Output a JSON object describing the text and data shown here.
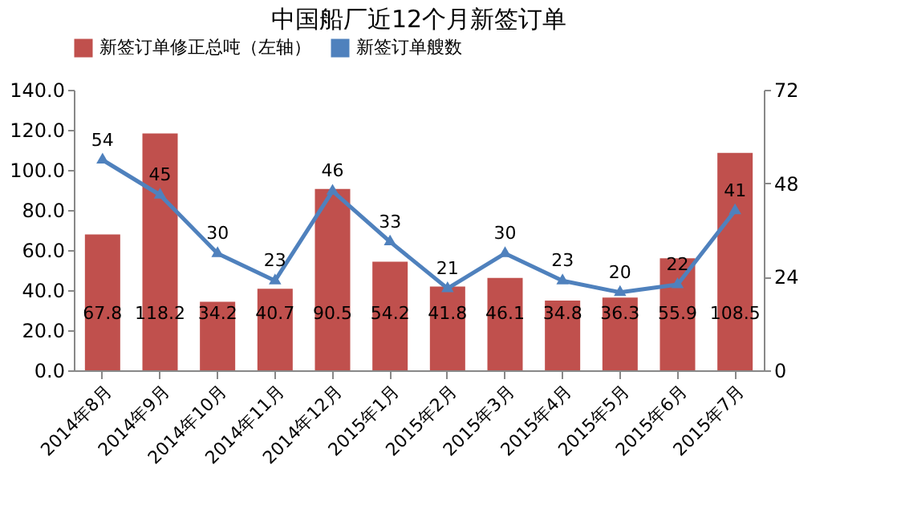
{
  "chart_data": {
    "type": "bar",
    "title": "中国船厂近12个月新签订单",
    "categories": [
      "2014年8月",
      "2014年9月",
      "2014年10月",
      "2014年11月",
      "2014年12月",
      "2015年1月",
      "2015年2月",
      "2015年3月",
      "2015年4月",
      "2015年5月",
      "2015年6月",
      "2015年7月"
    ],
    "series": [
      {
        "name": "新签订单修正总吨（左轴）",
        "color": "#c0504d",
        "values": [
          67.8,
          118.2,
          34.2,
          40.7,
          90.5,
          54.2,
          41.8,
          46.1,
          34.8,
          36.3,
          55.9,
          108.5
        ]
      },
      {
        "name": "新签订单艘数",
        "type": "line",
        "axis": "y2",
        "color": "#4f81bd",
        "marker": "triangle",
        "values": [
          54,
          45,
          30,
          23,
          46,
          33,
          21,
          30,
          23,
          20,
          22,
          41
        ]
      }
    ],
    "ylim": [
      0,
      140
    ],
    "yticks": [
      {
        "value": 0,
        "label": "0.0"
      },
      {
        "value": 20,
        "label": "20.0"
      },
      {
        "value": 40,
        "label": "40.0"
      },
      {
        "value": 60,
        "label": "60.0"
      },
      {
        "value": 80,
        "label": "80.0"
      },
      {
        "value": 100,
        "label": "100.0"
      },
      {
        "value": 120,
        "label": "120.0"
      },
      {
        "value": 140,
        "label": "140.0"
      }
    ],
    "y2lim": [
      0,
      72
    ],
    "y2ticks": [
      0,
      24,
      48,
      72
    ],
    "data_labels": true,
    "legend": "top",
    "grid": false
  }
}
